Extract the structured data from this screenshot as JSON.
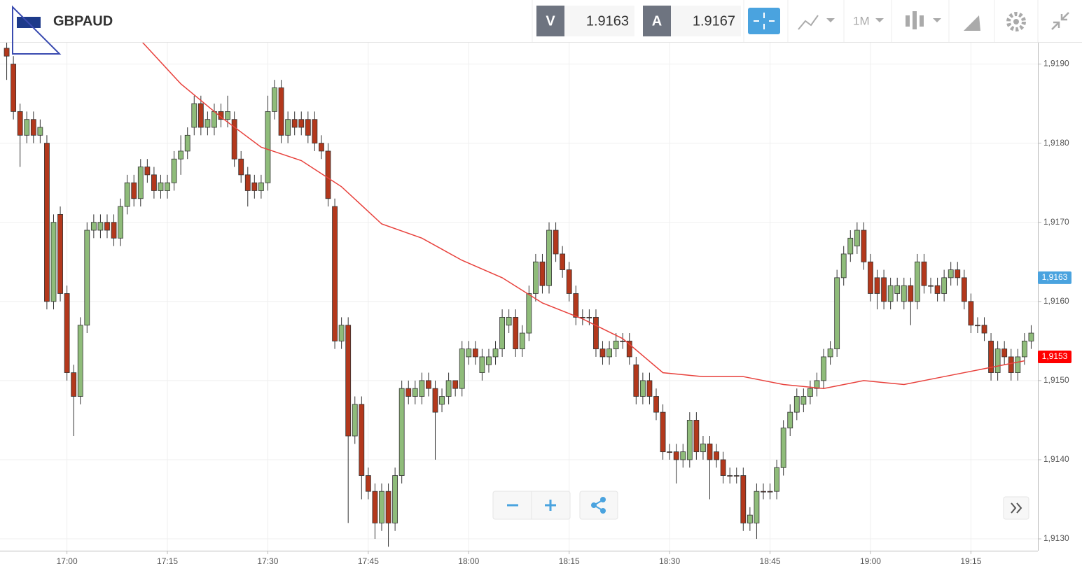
{
  "header": {
    "symbol": "GBPAUD",
    "sell_label": "V",
    "sell_price": 1.9163,
    "buy_label": "A",
    "buy_price": 1.9167,
    "timeframe": "1M"
  },
  "chart_data": {
    "type": "candlestick",
    "up_color": "#8fbc7a",
    "down_color": "#b3381c",
    "grid": true,
    "x": [
      "16:51",
      "16:52",
      "16:53",
      "16:54",
      "16:55",
      "16:56",
      "16:57",
      "16:58",
      "16:59",
      "17:00",
      "17:01",
      "17:02",
      "17:03",
      "17:04",
      "17:05",
      "17:06",
      "17:07",
      "17:08",
      "17:09",
      "17:10",
      "17:11",
      "17:12",
      "17:13",
      "17:14",
      "17:15",
      "17:16",
      "17:17",
      "17:18",
      "17:19",
      "17:20",
      "17:21",
      "17:22",
      "17:23",
      "17:24",
      "17:25",
      "17:26",
      "17:27",
      "17:28",
      "17:29",
      "17:30",
      "17:31",
      "17:32",
      "17:33",
      "17:34",
      "17:35",
      "17:36",
      "17:37",
      "17:38",
      "17:39",
      "17:40",
      "17:41",
      "17:42",
      "17:43",
      "17:44",
      "17:45",
      "17:46",
      "17:47",
      "17:48",
      "17:49",
      "17:50",
      "17:51",
      "17:52",
      "17:53",
      "17:54",
      "17:55",
      "17:56",
      "17:57",
      "17:58",
      "17:59",
      "18:00",
      "18:01",
      "18:02",
      "18:03",
      "18:04",
      "18:05",
      "18:06",
      "18:07",
      "18:08",
      "18:09",
      "18:10",
      "18:11",
      "18:12",
      "18:13",
      "18:14",
      "18:15",
      "18:16",
      "18:17",
      "18:18",
      "18:19",
      "18:20",
      "18:21",
      "18:22",
      "18:23",
      "18:24",
      "18:25",
      "18:26",
      "18:27",
      "18:28",
      "18:29",
      "18:30",
      "18:31",
      "18:32",
      "18:33",
      "18:34",
      "18:35",
      "18:36",
      "18:37",
      "18:38",
      "18:39",
      "18:40",
      "18:41",
      "18:42",
      "18:43",
      "18:44",
      "18:45",
      "18:46",
      "18:47",
      "18:48",
      "18:49",
      "18:50",
      "18:51",
      "18:52",
      "18:53",
      "18:54",
      "18:55",
      "18:56",
      "18:57",
      "18:58",
      "18:59",
      "19:00",
      "19:01",
      "19:02",
      "19:03",
      "19:04",
      "19:05",
      "19:06",
      "19:07",
      "19:08",
      "19:09",
      "19:10",
      "19:11",
      "19:12",
      "19:13",
      "19:14",
      "19:15",
      "19:16",
      "19:17",
      "19:18",
      "19:19",
      "19:20",
      "19:21",
      "19:22",
      "19:23",
      "19:24"
    ],
    "open": [
      1.9192,
      1.919,
      1.9184,
      1.9181,
      1.9183,
      1.9181,
      1.918,
      1.916,
      1.9171,
      1.9161,
      1.9151,
      1.9148,
      1.9157,
      1.9169,
      1.9169,
      1.917,
      1.917,
      1.9168,
      1.9172,
      1.9175,
      1.9173,
      1.9177,
      1.9176,
      1.9174,
      1.9174,
      1.9175,
      1.9178,
      1.9179,
      1.9182,
      1.9185,
      1.9182,
      1.9182,
      1.9184,
      1.9183,
      1.9183,
      1.9178,
      1.9176,
      1.9175,
      1.9174,
      1.9175,
      1.9184,
      1.9187,
      1.9181,
      1.9183,
      1.9183,
      1.9183,
      1.9183,
      1.918,
      1.9179,
      1.9172,
      1.9155,
      1.9157,
      1.9143,
      1.9147,
      1.9138,
      1.9136,
      1.9132,
      1.9136,
      1.9132,
      1.9138,
      1.9149,
      1.9148,
      1.9148,
      1.915,
      1.9149,
      1.9147,
      1.9148,
      1.915,
      1.9149,
      1.9153,
      1.9154,
      1.9151,
      1.9152,
      1.9153,
      1.9154,
      1.9157,
      1.9158,
      1.9154,
      1.9156,
      1.9161,
      1.9165,
      1.9162,
      1.9169,
      1.9166,
      1.9164,
      1.9161,
      1.9158,
      1.9158,
      1.9158,
      1.9154,
      1.9153,
      1.9154,
      1.9155,
      1.9155,
      1.9152,
      1.9148,
      1.915,
      1.9148,
      1.9146,
      1.9141,
      1.9141,
      1.914,
      1.914,
      1.9145,
      1.9141,
      1.9142,
      1.9141,
      1.914,
      1.9138,
      1.9138,
      1.9138,
      1.9132,
      1.9132,
      1.9136,
      1.9136,
      1.9136,
      1.9139,
      1.9144,
      1.9146,
      1.9147,
      1.9148,
      1.9149,
      1.915,
      1.9153,
      1.9154,
      1.9163,
      1.9166,
      1.9167,
      1.9169,
      1.9165,
      1.9163,
      1.9163,
      1.916,
      1.9161,
      1.916,
      1.9162,
      1.916,
      1.9165,
      1.9162,
      1.9162,
      1.9161,
      1.9163,
      1.9164,
      1.9163,
      1.916,
      1.9157,
      1.9157,
      1.9155,
      1.9151,
      1.9154,
      1.9153,
      1.9151,
      1.9153,
      1.9155
    ],
    "high": [
      1.9193,
      1.9191,
      1.9185,
      1.9184,
      1.9184,
      1.9183,
      1.9181,
      1.9171,
      1.9172,
      1.9162,
      1.9152,
      1.9158,
      1.917,
      1.9171,
      1.9171,
      1.9171,
      1.9171,
      1.9173,
      1.9176,
      1.9176,
      1.9178,
      1.9178,
      1.9177,
      1.9176,
      1.9176,
      1.9179,
      1.9181,
      1.9182,
      1.9186,
      1.9186,
      1.9184,
      1.9185,
      1.9185,
      1.9186,
      1.9184,
      1.9179,
      1.9177,
      1.9176,
      1.9176,
      1.9186,
      1.9188,
      1.9188,
      1.9184,
      1.9184,
      1.9184,
      1.9184,
      1.9184,
      1.9181,
      1.918,
      1.9173,
      1.9158,
      1.9158,
      1.9148,
      1.9148,
      1.9139,
      1.9137,
      1.9137,
      1.9137,
      1.9139,
      1.915,
      1.915,
      1.915,
      1.9151,
      1.9151,
      1.915,
      1.9149,
      1.9151,
      1.915,
      1.9155,
      1.9155,
      1.9155,
      1.9154,
      1.9154,
      1.9155,
      1.9159,
      1.9159,
      1.9159,
      1.9157,
      1.9162,
      1.9166,
      1.9166,
      1.917,
      1.917,
      1.9167,
      1.9165,
      1.9162,
      1.9159,
      1.9159,
      1.9159,
      1.9155,
      1.9155,
      1.9156,
      1.9156,
      1.9156,
      1.9153,
      1.9151,
      1.9151,
      1.9149,
      1.9147,
      1.9142,
      1.9142,
      1.9142,
      1.9146,
      1.9146,
      1.9143,
      1.9143,
      1.9142,
      1.9141,
      1.9139,
      1.9139,
      1.9139,
      1.9134,
      1.9137,
      1.9137,
      1.9137,
      1.914,
      1.9145,
      1.9147,
      1.9149,
      1.9149,
      1.915,
      1.9151,
      1.9154,
      1.9155,
      1.9164,
      1.9167,
      1.9169,
      1.917,
      1.917,
      1.9166,
      1.9164,
      1.9164,
      1.9163,
      1.9163,
      1.9163,
      1.9163,
      1.9166,
      1.9166,
      1.9163,
      1.9163,
      1.9164,
      1.9165,
      1.9165,
      1.9164,
      1.9161,
      1.9158,
      1.9158,
      1.9156,
      1.9155,
      1.9155,
      1.9154,
      1.9154,
      1.9156,
      1.9157
    ],
    "low": [
      1.9188,
      1.9183,
      1.9177,
      1.918,
      1.918,
      1.918,
      1.9159,
      1.9159,
      1.916,
      1.915,
      1.9143,
      1.9147,
      1.9156,
      1.9168,
      1.9168,
      1.9168,
      1.9167,
      1.9167,
      1.9171,
      1.9172,
      1.9172,
      1.9175,
      1.9173,
      1.9173,
      1.9173,
      1.9174,
      1.9176,
      1.9178,
      1.9181,
      1.9181,
      1.9181,
      1.9181,
      1.9182,
      1.9182,
      1.9177,
      1.9175,
      1.9172,
      1.9173,
      1.9173,
      1.9174,
      1.9183,
      1.918,
      1.918,
      1.9181,
      1.9181,
      1.918,
      1.9179,
      1.9178,
      1.9172,
      1.9154,
      1.9154,
      1.9132,
      1.9142,
      1.9135,
      1.9135,
      1.913,
      1.9131,
      1.9129,
      1.9131,
      1.9137,
      1.9147,
      1.9147,
      1.9147,
      1.9148,
      1.914,
      1.9146,
      1.9147,
      1.9148,
      1.9148,
      1.9152,
      1.9152,
      1.915,
      1.9151,
      1.9152,
      1.9153,
      1.9156,
      1.9153,
      1.9153,
      1.9155,
      1.916,
      1.9161,
      1.9161,
      1.9165,
      1.9163,
      1.916,
      1.9157,
      1.9157,
      1.9157,
      1.9153,
      1.9152,
      1.9152,
      1.9153,
      1.9154,
      1.9152,
      1.9147,
      1.9147,
      1.9147,
      1.9145,
      1.914,
      1.914,
      1.9137,
      1.9139,
      1.9139,
      1.914,
      1.914,
      1.9135,
      1.9139,
      1.9137,
      1.9137,
      1.9137,
      1.9131,
      1.9131,
      1.913,
      1.9135,
      1.9135,
      1.9135,
      1.9138,
      1.9143,
      1.9145,
      1.9146,
      1.9147,
      1.9148,
      1.9149,
      1.9152,
      1.9153,
      1.9162,
      1.9165,
      1.9166,
      1.9164,
      1.916,
      1.9159,
      1.9159,
      1.9159,
      1.916,
      1.9159,
      1.9157,
      1.9159,
      1.9161,
      1.9161,
      1.916,
      1.916,
      1.9162,
      1.9162,
      1.9159,
      1.9156,
      1.9156,
      1.9155,
      1.915,
      1.915,
      1.9152,
      1.915,
      1.915,
      1.9152,
      1.9154
    ],
    "close": [
      1.9191,
      1.9184,
      1.9181,
      1.9183,
      1.9181,
      1.9182,
      1.916,
      1.917,
      1.9161,
      1.9151,
      1.9148,
      1.9157,
      1.9169,
      1.917,
      1.917,
      1.9169,
      1.9168,
      1.9172,
      1.9175,
      1.9173,
      1.9177,
      1.9176,
      1.9174,
      1.9175,
      1.9175,
      1.9178,
      1.9179,
      1.9181,
      1.9185,
      1.9182,
      1.9183,
      1.9184,
      1.9183,
      1.9184,
      1.9178,
      1.9176,
      1.9174,
      1.9174,
      1.9175,
      1.9184,
      1.9187,
      1.9181,
      1.9183,
      1.9182,
      1.9182,
      1.9181,
      1.918,
      1.9179,
      1.9173,
      1.9155,
      1.9157,
      1.9143,
      1.9147,
      1.9138,
      1.9136,
      1.9132,
      1.9136,
      1.9132,
      1.9138,
      1.9149,
      1.9148,
      1.9149,
      1.915,
      1.9149,
      1.9146,
      1.9148,
      1.915,
      1.9149,
      1.9154,
      1.9154,
      1.9153,
      1.9153,
      1.9153,
      1.9154,
      1.9158,
      1.9158,
      1.9154,
      1.9156,
      1.9161,
      1.9165,
      1.9162,
      1.9169,
      1.9166,
      1.9164,
      1.9161,
      1.9158,
      1.9158,
      1.9158,
      1.9154,
      1.9153,
      1.9154,
      1.9155,
      1.9155,
      1.9153,
      1.9148,
      1.915,
      1.9148,
      1.9146,
      1.9141,
      1.9141,
      1.914,
      1.9141,
      1.9145,
      1.9141,
      1.9142,
      1.914,
      1.914,
      1.9138,
      1.9138,
      1.9138,
      1.9132,
      1.9133,
      1.9136,
      1.9136,
      1.9136,
      1.9139,
      1.9144,
      1.9146,
      1.9148,
      1.9148,
      1.9149,
      1.915,
      1.9153,
      1.9154,
      1.9163,
      1.9166,
      1.9168,
      1.9169,
      1.9165,
      1.9161,
      1.9161,
      1.916,
      1.9162,
      1.9162,
      1.9162,
      1.916,
      1.9165,
      1.9162,
      1.9162,
      1.9161,
      1.9163,
      1.9164,
      1.9163,
      1.916,
      1.9157,
      1.9157,
      1.9156,
      1.9151,
      1.9154,
      1.9153,
      1.9151,
      1.9153,
      1.9155,
      1.9156
    ],
    "moving_average": {
      "color": "#e8413c",
      "x": [
        "17:11",
        "17:17",
        "17:23",
        "17:29",
        "17:35",
        "17:41",
        "17:47",
        "17:53",
        "17:59",
        "18:05",
        "18:11",
        "18:17",
        "18:23",
        "18:29",
        "18:35",
        "18:41",
        "18:47",
        "18:53",
        "18:59",
        "19:05",
        "19:11",
        "19:17",
        "19:23"
      ],
      "values": [
        1.9193,
        1.91875,
        1.91833,
        1.91795,
        1.91778,
        1.91745,
        1.91698,
        1.9168,
        1.91652,
        1.9163,
        1.91598,
        1.91578,
        1.91553,
        1.9151,
        1.91505,
        1.91505,
        1.91495,
        1.9149,
        1.915,
        1.91495,
        1.91505,
        1.91515,
        1.91525
      ]
    },
    "price_tags": [
      {
        "value": 1.9163,
        "label": "1,9163",
        "color": "#4aa3df"
      },
      {
        "value": 1.9153,
        "label": "1,9153",
        "color": "#ff0000"
      }
    ],
    "xlim": [
      "16:50",
      "19:25"
    ],
    "xticks": [
      "17:00",
      "17:15",
      "17:30",
      "17:45",
      "18:00",
      "18:15",
      "18:30",
      "18:45",
      "19:00",
      "19:15"
    ],
    "ylim": [
      1.91285,
      1.91927
    ],
    "yticks": [
      {
        "value": 1.913,
        "label": "1,9130"
      },
      {
        "value": 1.914,
        "label": "1,9140"
      },
      {
        "value": 1.915,
        "label": "1,9150"
      },
      {
        "value": 1.916,
        "label": "1,9160"
      },
      {
        "value": 1.917,
        "label": "1,9170"
      },
      {
        "value": 1.918,
        "label": "1,9180"
      },
      {
        "value": 1.919,
        "label": "1,9190"
      }
    ]
  }
}
